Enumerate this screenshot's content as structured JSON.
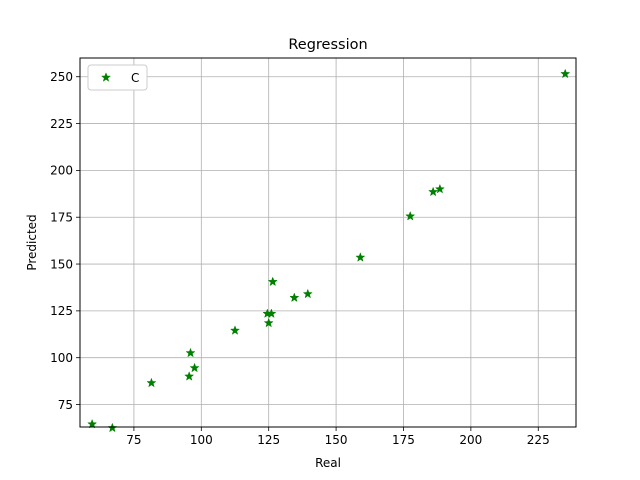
{
  "chart_data": {
    "type": "scatter",
    "title": "Regression",
    "xlabel": "Real",
    "ylabel": "Predicted",
    "xlim": [
      55,
      239
    ],
    "ylim": [
      63,
      260
    ],
    "xticks": [
      75,
      100,
      125,
      150,
      175,
      200,
      225
    ],
    "yticks": [
      75,
      100,
      125,
      150,
      175,
      200,
      225,
      250
    ],
    "grid": true,
    "legend_position": "top-left",
    "series": [
      {
        "name": "C",
        "marker": "star",
        "color": "#008000",
        "points": [
          {
            "x": 59.5,
            "y": 64.5
          },
          {
            "x": 67,
            "y": 62.5
          },
          {
            "x": 81.5,
            "y": 86.5
          },
          {
            "x": 95.5,
            "y": 90
          },
          {
            "x": 96,
            "y": 102.5
          },
          {
            "x": 97.5,
            "y": 94.5
          },
          {
            "x": 112.5,
            "y": 114.5
          },
          {
            "x": 124.5,
            "y": 123.5
          },
          {
            "x": 125,
            "y": 118.5
          },
          {
            "x": 126,
            "y": 123.5
          },
          {
            "x": 126.5,
            "y": 140.5
          },
          {
            "x": 134.5,
            "y": 132
          },
          {
            "x": 139.5,
            "y": 134
          },
          {
            "x": 159,
            "y": 153.5
          },
          {
            "x": 177.5,
            "y": 175.5
          },
          {
            "x": 186,
            "y": 188.5
          },
          {
            "x": 188.5,
            "y": 190
          },
          {
            "x": 235,
            "y": 251.5
          }
        ]
      }
    ]
  }
}
